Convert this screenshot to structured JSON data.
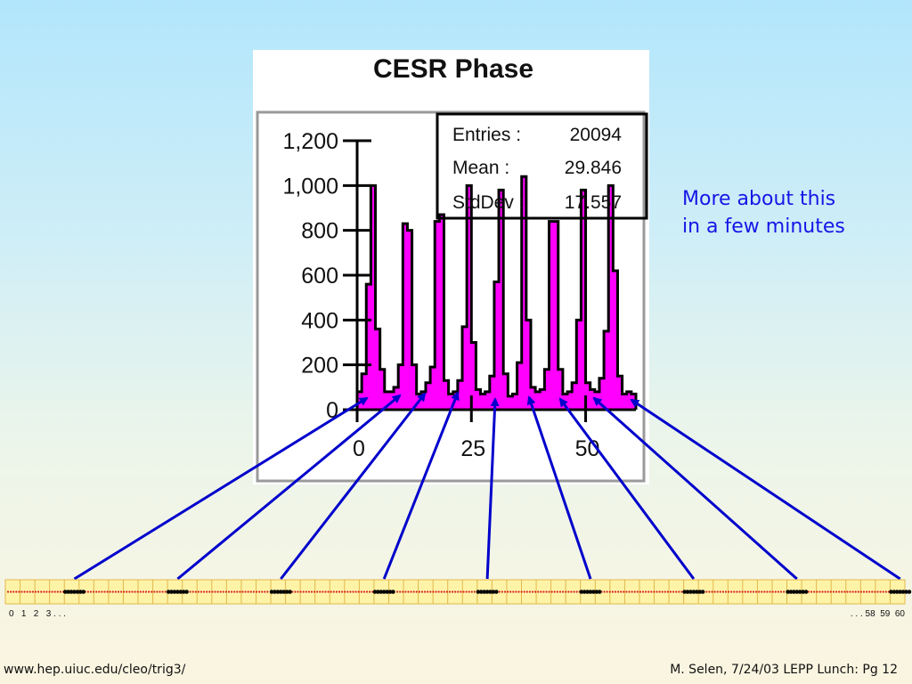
{
  "chart_data": {
    "type": "bar",
    "title": "CESR Phase",
    "xlim": [
      0,
      61
    ],
    "ylim": [
      0,
      1200
    ],
    "x_ticks": [
      0,
      25,
      50
    ],
    "y_ticks": [
      0,
      200,
      400,
      600,
      800,
      1000,
      1200
    ],
    "y_tick_labels": [
      "0",
      "200",
      "400",
      "600",
      "800",
      "1,000",
      "1,200"
    ],
    "x": [
      0,
      1,
      2,
      3,
      4,
      5,
      6,
      7,
      8,
      9,
      10,
      11,
      12,
      13,
      14,
      15,
      16,
      17,
      18,
      19,
      20,
      21,
      22,
      23,
      24,
      25,
      26,
      27,
      28,
      29,
      30,
      31,
      32,
      33,
      34,
      35,
      36,
      37,
      38,
      39,
      40,
      41,
      42,
      43,
      44,
      45,
      46,
      47,
      48,
      49,
      50,
      51,
      52,
      53,
      54,
      55,
      56,
      57,
      58,
      59,
      60
    ],
    "values": [
      80,
      160,
      560,
      1000,
      360,
      180,
      80,
      80,
      100,
      200,
      830,
      800,
      200,
      70,
      80,
      120,
      190,
      840,
      870,
      130,
      70,
      80,
      130,
      370,
      1000,
      300,
      90,
      70,
      80,
      150,
      570,
      980,
      160,
      60,
      70,
      210,
      1040,
      400,
      100,
      80,
      90,
      180,
      840,
      840,
      180,
      70,
      80,
      120,
      400,
      980,
      120,
      90,
      80,
      140,
      350,
      1000,
      620,
      150,
      70,
      80,
      70
    ],
    "stats": {
      "entries_label": "Entries :",
      "entries_value": "20094",
      "mean_label": "Mean :",
      "mean_value": "29.846",
      "stddev_label": "StdDev :",
      "stddev_value": "17.557"
    },
    "colors": {
      "bars": "#ff00ff",
      "outline": "#000000",
      "arrows": "#0000cc"
    }
  },
  "note": {
    "line1": "More about this",
    "line2": "in a few minutes"
  },
  "bucket_strip": {
    "buckets": 61,
    "train_positions": [
      5,
      12,
      19,
      26,
      33,
      40,
      47,
      54,
      61
    ],
    "left_label": "0   1   2   3 . . .",
    "right_label": ". . . 58  59  60",
    "colors": {
      "background": "#fff3a8",
      "grid": "#e0b84a",
      "dot": "#d42020",
      "train": "#000000"
    }
  },
  "footer": {
    "url": "www.hep.uiuc.edu/cleo/trig3/",
    "credit": "M. Selen, 7/24/03 LEPP Lunch: Pg 12"
  }
}
